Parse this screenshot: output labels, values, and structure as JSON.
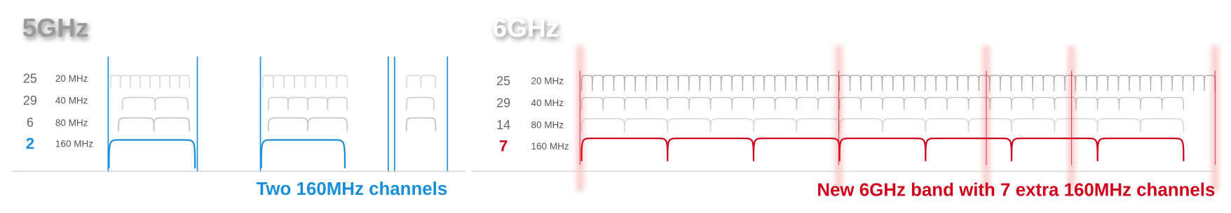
{
  "panels": [
    {
      "title": "5GHz",
      "rows": [
        {
          "count": 25,
          "width": "20 MHz"
        },
        {
          "count": 29,
          "width": "40 MHz"
        },
        {
          "count": 6,
          "width": "80 MHz"
        },
        {
          "count": 2,
          "width": "160 MHz"
        }
      ],
      "caption": "Two 160MHz channels"
    },
    {
      "title": "6GHz",
      "rows": [
        {
          "count": 25,
          "width": "20 MHz"
        },
        {
          "count": 29,
          "width": "40 MHz"
        },
        {
          "count": 14,
          "width": "80 MHz"
        },
        {
          "count": 7,
          "width": "160 MHz"
        }
      ],
      "caption": "New 6GHz band with 7 extra 160MHz channels"
    }
  ]
}
